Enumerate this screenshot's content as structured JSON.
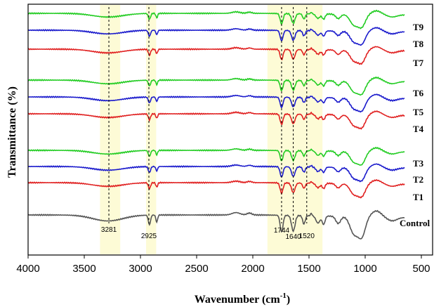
{
  "chart_data": {
    "type": "line",
    "title": "",
    "xlabel": "Wavenumber (cm",
    "xlabel_sup": "-1",
    "xlabel_tail": ")",
    "ylabel": "Transmittance (%)",
    "xlim": [
      4000,
      400
    ],
    "x_reversed": true,
    "x_ticks": [
      "4000",
      "3500",
      "3000",
      "2500",
      "2000",
      "1500",
      "1000",
      "500"
    ],
    "grid": false,
    "highlight_bands": [
      [
        3360,
        3180
      ],
      [
        2950,
        2860
      ],
      [
        1870,
        1380
      ]
    ],
    "peaks": [
      {
        "x": 3281,
        "label": "3281"
      },
      {
        "x": 2925,
        "label": "2925"
      },
      {
        "x": 1744,
        "label": "1744"
      },
      {
        "x": 1640,
        "label": "1640"
      },
      {
        "x": 1520,
        "label": "1520"
      }
    ],
    "series": [
      {
        "name": "T9",
        "color": "#22cc22"
      },
      {
        "name": "T8",
        "color": "#1a1acc"
      },
      {
        "name": "T7",
        "color": "#e02020"
      },
      {
        "name": "T6",
        "color": "#22cc22"
      },
      {
        "name": "T5",
        "color": "#1a1acc"
      },
      {
        "name": "T4",
        "color": "#e02020"
      },
      {
        "name": "T3",
        "color": "#22cc22"
      },
      {
        "name": "T2",
        "color": "#1a1acc"
      },
      {
        "name": "T1",
        "color": "#e02020"
      },
      {
        "name": "Control",
        "color": "#555555"
      }
    ]
  }
}
